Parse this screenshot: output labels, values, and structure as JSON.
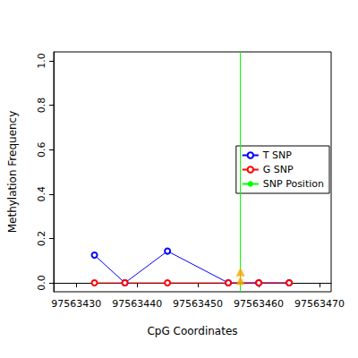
{
  "chart_data": {
    "type": "line",
    "x_label": "CpG Coordinates",
    "y_label": "Methylation Frequency",
    "xlim": [
      97563426.3,
      97563471.9
    ],
    "xticks": [
      97563430,
      97563440,
      97563450,
      97563460,
      97563470
    ],
    "ylim": [
      -0.04,
      1.04
    ],
    "yticks": [
      {
        "value": 0,
        "label": "0.0"
      },
      0.2,
      0.4,
      0.6,
      0.8,
      {
        "value": 1,
        "label": "1.0"
      }
    ],
    "x": [
      97563433,
      97563438,
      97563445,
      97563455,
      97563460,
      97563465
    ],
    "series": [
      {
        "name": "T SNP",
        "color": "#0000ff",
        "marker": "circle",
        "values": [
          0.125,
          0,
          0.143,
          0,
          0,
          0
        ]
      },
      {
        "name": "G SNP",
        "color": "#ff0000",
        "marker": "circle",
        "values": [
          0,
          0,
          0,
          0,
          0,
          0
        ]
      }
    ],
    "snp": {
      "name": "SNP Position",
      "color": "#00ff00",
      "x": 97563457,
      "marker_values": [
        0.05,
        0.01
      ],
      "marker_color": "#ffa500",
      "marker": "triangle"
    },
    "legend": "right"
  }
}
